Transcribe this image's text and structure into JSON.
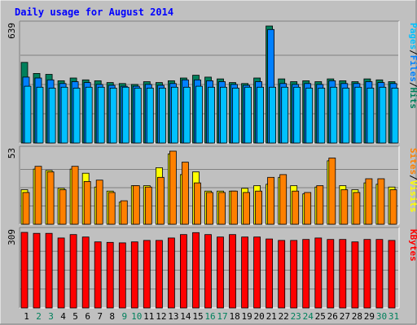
{
  "chart_data": [
    {
      "type": "bar",
      "title": "Daily usage for August 2014",
      "panel": "hits-files-pages",
      "ymax_label": "639",
      "legend": [
        "Pages",
        "/",
        "Files",
        "/",
        "Hits"
      ],
      "categories": [
        "1",
        "2",
        "3",
        "4",
        "5",
        "6",
        "7",
        "8",
        "9",
        "10",
        "11",
        "12",
        "13",
        "14",
        "15",
        "16",
        "17",
        "18",
        "19",
        "20",
        "21",
        "22",
        "23",
        "24",
        "25",
        "26",
        "27",
        "28",
        "29",
        "30",
        "31"
      ],
      "ylim": [
        0,
        639
      ],
      "series": [
        {
          "name": "Hits",
          "values": [
            440,
            380,
            375,
            340,
            355,
            345,
            340,
            330,
            325,
            320,
            335,
            330,
            340,
            355,
            370,
            360,
            350,
            330,
            325,
            355,
            639,
            350,
            335,
            340,
            335,
            350,
            340,
            335,
            350,
            345,
            335
          ]
        },
        {
          "name": "Files",
          "values": [
            360,
            355,
            345,
            325,
            335,
            330,
            320,
            315,
            310,
            310,
            320,
            315,
            325,
            345,
            345,
            340,
            335,
            320,
            315,
            335,
            620,
            325,
            320,
            325,
            320,
            340,
            325,
            325,
            335,
            330,
            325
          ]
        },
        {
          "name": "Pages",
          "values": [
            310,
            305,
            300,
            305,
            300,
            305,
            305,
            300,
            305,
            300,
            300,
            300,
            305,
            305,
            310,
            305,
            305,
            300,
            305,
            305,
            305,
            305,
            305,
            300,
            300,
            305,
            300,
            305,
            300,
            305,
            300
          ]
        }
      ]
    },
    {
      "type": "bar",
      "panel": "visits-sites",
      "ymax_label": "53",
      "legend": [
        "Sites",
        "/",
        "Visits"
      ],
      "categories": [
        "1",
        "2",
        "3",
        "4",
        "5",
        "6",
        "7",
        "8",
        "9",
        "10",
        "11",
        "12",
        "13",
        "14",
        "15",
        "16",
        "17",
        "18",
        "19",
        "20",
        "21",
        "22",
        "23",
        "24",
        "25",
        "26",
        "27",
        "28",
        "29",
        "30",
        "31"
      ],
      "ylim": [
        0,
        53
      ],
      "series": [
        {
          "name": "Visits",
          "values": [
            25,
            40,
            39,
            26,
            40,
            37,
            27,
            24,
            16,
            28,
            28,
            41,
            51,
            36,
            38,
            24,
            24,
            24,
            26,
            28,
            29,
            34,
            28,
            22,
            27,
            46,
            28,
            25,
            30,
            29,
            27
          ]
        },
        {
          "name": "Sites",
          "values": [
            23,
            42,
            38,
            25,
            42,
            31,
            32,
            23,
            17,
            28,
            27,
            34,
            53,
            45,
            30,
            23,
            23,
            24,
            23,
            24,
            34,
            36,
            24,
            23,
            28,
            48,
            25,
            23,
            33,
            33,
            25
          ]
        }
      ]
    },
    {
      "type": "bar",
      "panel": "kbytes",
      "ymax_label": "309",
      "legend": [
        "KBytes"
      ],
      "categories": [
        "1",
        "2",
        "3",
        "4",
        "5",
        "6",
        "7",
        "8",
        "9",
        "10",
        "11",
        "12",
        "13",
        "14",
        "15",
        "16",
        "17",
        "18",
        "19",
        "20",
        "21",
        "22",
        "23",
        "24",
        "25",
        "26",
        "27",
        "28",
        "29",
        "30",
        "31"
      ],
      "ylim": [
        0,
        309
      ],
      "series": [
        {
          "name": "KBytes",
          "values": [
            309,
            305,
            305,
            286,
            300,
            290,
            270,
            268,
            266,
            270,
            276,
            276,
            286,
            300,
            308,
            300,
            290,
            300,
            290,
            290,
            282,
            276,
            276,
            280,
            286,
            280,
            280,
            270,
            280,
            280,
            276
          ]
        }
      ]
    }
  ],
  "weekend_days": [
    2,
    3,
    9,
    10,
    16,
    17,
    23,
    24,
    30,
    31
  ],
  "colors": {
    "background": "#C0C0C0",
    "panel": "#C0C0C0",
    "title": "#0000FF",
    "hits": "#00805C",
    "files": "#0080FF",
    "pages": "#00C0FF",
    "visits": "#FFFF00",
    "sites": "#FF8000",
    "kbytes": "#FF0000",
    "day_weekday": "#000000",
    "day_weekend": "#00805C",
    "grid": "#808080"
  }
}
